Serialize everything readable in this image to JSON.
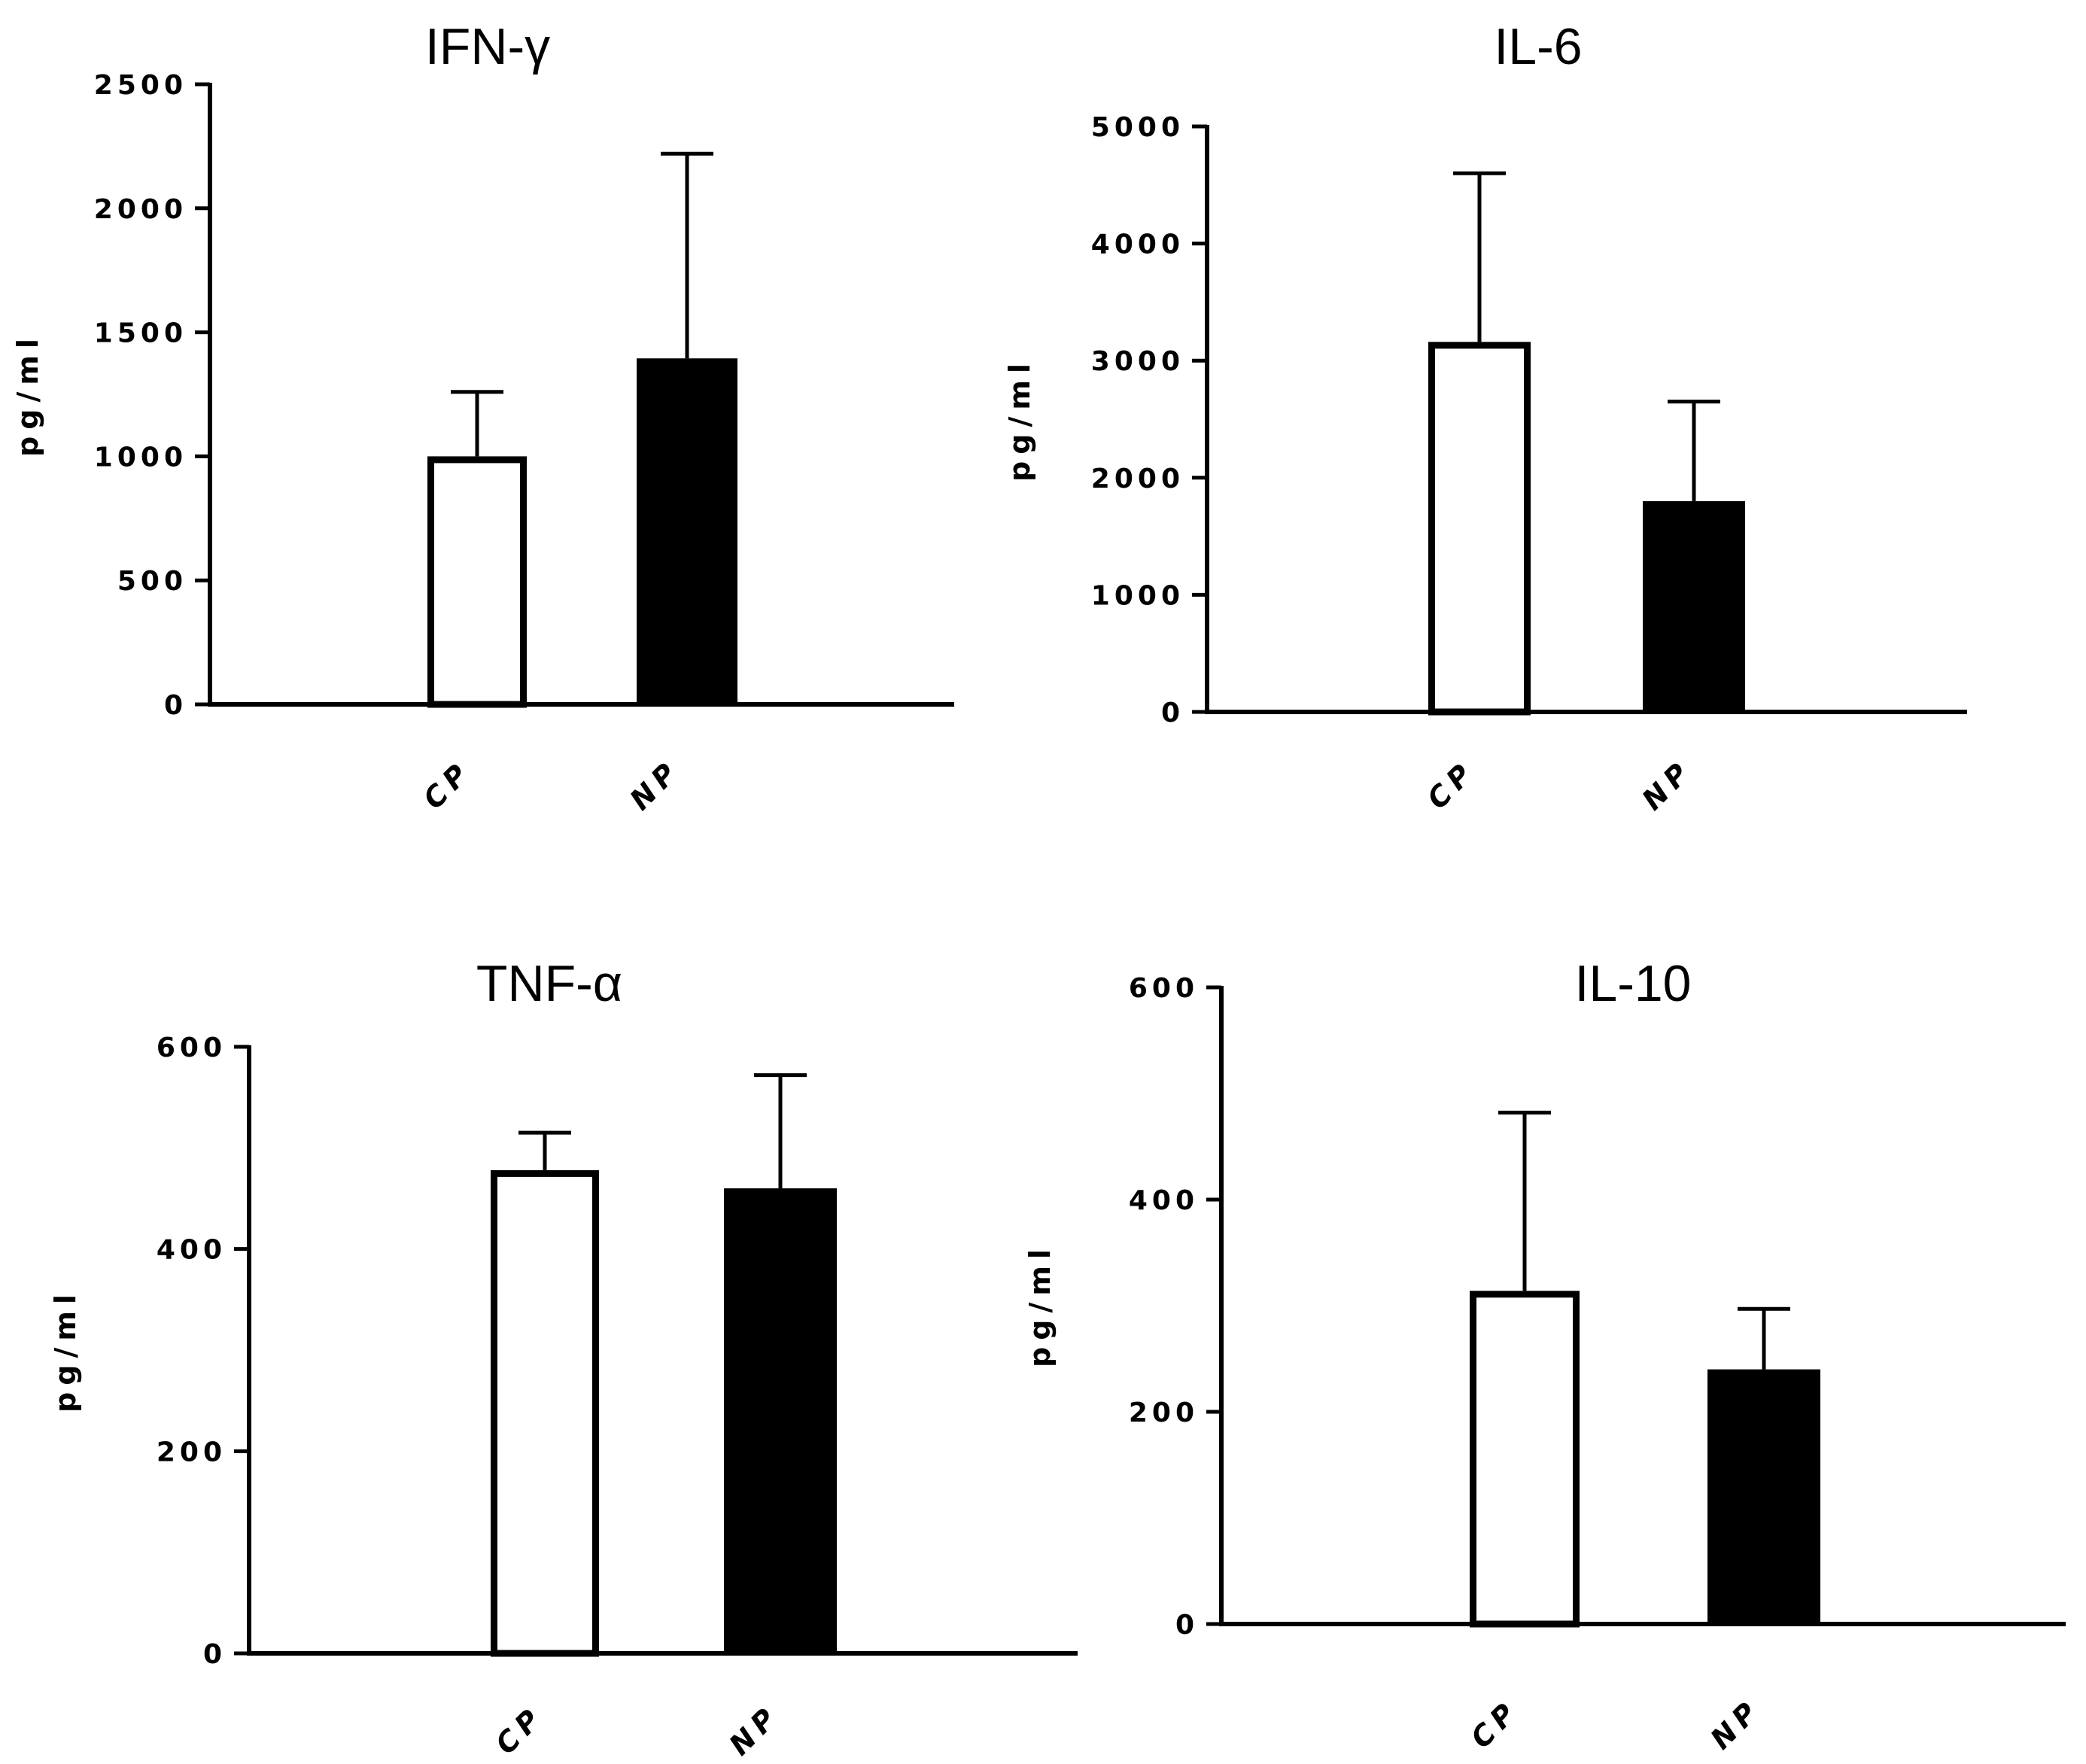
{
  "chart_data": [
    {
      "type": "bar",
      "title": "IFN-γ",
      "ylabel": "pg/ml",
      "xlabel": "",
      "categories": [
        "CP",
        "NP"
      ],
      "values": [
        1000,
        1395
      ],
      "error_upper": [
        1260,
        2220
      ],
      "ylim": [
        0,
        2500
      ],
      "yticks": [
        0,
        500,
        1000,
        1500,
        2000,
        2500
      ],
      "ytick_labels": [
        "0",
        "500",
        "1000",
        "1500",
        "2000",
        "2500"
      ],
      "bar_styles": [
        "open",
        "filled"
      ],
      "grid": false
    },
    {
      "type": "bar",
      "title": "IL-6",
      "ylabel": "pg/ml",
      "xlabel": "",
      "categories": [
        "CP",
        "NP"
      ],
      "values": [
        3160,
        1800
      ],
      "error_upper": [
        4600,
        2650
      ],
      "ylim": [
        0,
        5000
      ],
      "yticks": [
        0,
        1000,
        2000,
        3000,
        4000,
        5000
      ],
      "ytick_labels": [
        "0",
        "1000",
        "2000",
        "3000",
        "4000",
        "5000"
      ],
      "bar_styles": [
        "open",
        "filled"
      ],
      "grid": false
    },
    {
      "type": "bar",
      "title": "TNF-α",
      "ylabel": "pg/ml",
      "xlabel": "",
      "categories": [
        "CP",
        "NP"
      ],
      "values": [
        478,
        460
      ],
      "error_upper": [
        515,
        572
      ],
      "ylim": [
        0,
        600
      ],
      "yticks": [
        0,
        200,
        400,
        600
      ],
      "ytick_labels": [
        "0",
        "200",
        "400",
        "600"
      ],
      "bar_styles": [
        "open",
        "filled"
      ],
      "grid": false
    },
    {
      "type": "bar",
      "title": "IL-10",
      "ylabel": "pg/ml",
      "xlabel": "",
      "categories": [
        "CP",
        "NP"
      ],
      "values": [
        314,
        240
      ],
      "error_upper": [
        482,
        297
      ],
      "ylim": [
        0,
        600
      ],
      "yticks": [
        0,
        200,
        400,
        600
      ],
      "ytick_labels": [
        "0",
        "200",
        "400",
        "600"
      ],
      "bar_styles": [
        "open",
        "filled"
      ],
      "grid": false
    }
  ]
}
